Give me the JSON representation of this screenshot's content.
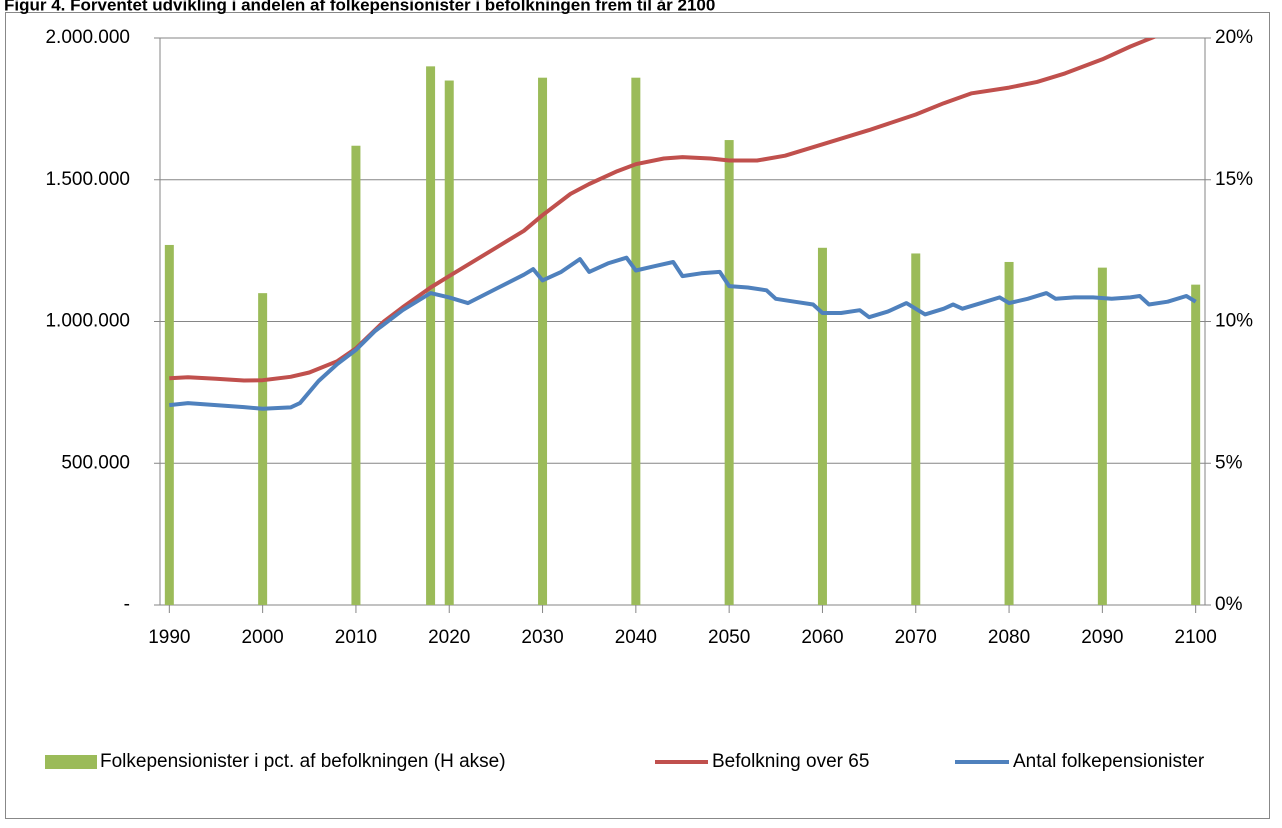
{
  "chart_data": {
    "type": "combo",
    "title": "Figur 4. Forventet udvikling i andelen af folkepensionister i befolkningen frem til år 2100",
    "xlim": [
      1989,
      2101
    ],
    "xticks": [
      1990,
      2000,
      2010,
      2020,
      2030,
      2040,
      2050,
      2060,
      2070,
      2080,
      2090,
      2100
    ],
    "ylim": [
      0,
      2000000
    ],
    "yticks": [
      {
        "value": 0,
        "label": "-"
      },
      {
        "value": 500000,
        "label": "500.000"
      },
      {
        "value": 1000000,
        "label": "1.000.000"
      },
      {
        "value": 1500000,
        "label": "1.500.000"
      },
      {
        "value": 2000000,
        "label": "2.000.000"
      }
    ],
    "y2lim": [
      0,
      20
    ],
    "y2ticks": [
      {
        "value": 0,
        "label": "0%"
      },
      {
        "value": 5,
        "label": "5%"
      },
      {
        "value": 10,
        "label": "10%"
      },
      {
        "value": 15,
        "label": "15%"
      },
      {
        "value": 20,
        "label": "20%"
      }
    ],
    "grid": true,
    "legend": "bottom",
    "series": [
      {
        "name": "Folkepensionister i pct. af befolkningen (H akse)",
        "type": "bar",
        "axis": "y2",
        "color": "#9bbb59",
        "x": [
          1990,
          2000,
          2010,
          2018,
          2020,
          2030,
          2040,
          2050,
          2060,
          2070,
          2080,
          2090,
          2100
        ],
        "values": [
          12.7,
          11.0,
          16.2,
          19.0,
          18.5,
          18.6,
          18.6,
          16.4,
          12.6,
          12.4,
          12.1,
          11.9,
          11.3
        ]
      },
      {
        "name": "Befolkning over 65",
        "type": "line",
        "color": "#c0504d",
        "x": [
          1990,
          1992,
          1995,
          1998,
          2000,
          2003,
          2005,
          2008,
          2010,
          2013,
          2015,
          2018,
          2020,
          2025,
          2028,
          2030,
          2033,
          2035,
          2038,
          2040,
          2043,
          2045,
          2048,
          2050,
          2053,
          2056,
          2060,
          2065,
          2070,
          2073,
          2076,
          2080,
          2083,
          2086,
          2090,
          2093,
          2096,
          2100
        ],
        "values": [
          800000,
          803000,
          798000,
          792000,
          793000,
          805000,
          820000,
          860000,
          905000,
          1000000,
          1050000,
          1120000,
          1160000,
          1260000,
          1320000,
          1375000,
          1450000,
          1485000,
          1530000,
          1555000,
          1575000,
          1580000,
          1575000,
          1568000,
          1568000,
          1585000,
          1625000,
          1675000,
          1730000,
          1770000,
          1805000,
          1825000,
          1845000,
          1875000,
          1925000,
          1970000,
          2010000,
          2050000
        ]
      },
      {
        "name": "Antal folkepensionister",
        "type": "line",
        "color": "#4f81bd",
        "x": [
          1990,
          1992,
          1995,
          1998,
          2000,
          2003,
          2004,
          2006,
          2008,
          2010,
          2012,
          2015,
          2018,
          2020,
          2022,
          2025,
          2028,
          2029,
          2030,
          2032,
          2034,
          2035,
          2037,
          2039,
          2040,
          2042,
          2044,
          2045,
          2047,
          2049,
          2050,
          2052,
          2054,
          2055,
          2057,
          2059,
          2060,
          2062,
          2064,
          2065,
          2067,
          2069,
          2071,
          2073,
          2074,
          2075,
          2077,
          2079,
          2080,
          2082,
          2084,
          2085,
          2087,
          2089,
          2091,
          2093,
          2094,
          2095,
          2097,
          2099,
          2100
        ],
        "values": [
          705000,
          712000,
          705000,
          698000,
          692000,
          697000,
          712000,
          790000,
          850000,
          900000,
          965000,
          1040000,
          1100000,
          1085000,
          1065000,
          1115000,
          1165000,
          1185000,
          1145000,
          1175000,
          1220000,
          1175000,
          1205000,
          1225000,
          1180000,
          1195000,
          1210000,
          1160000,
          1170000,
          1175000,
          1125000,
          1120000,
          1110000,
          1080000,
          1070000,
          1060000,
          1030000,
          1030000,
          1040000,
          1015000,
          1035000,
          1065000,
          1025000,
          1045000,
          1060000,
          1045000,
          1065000,
          1085000,
          1065000,
          1080000,
          1100000,
          1080000,
          1085000,
          1085000,
          1080000,
          1085000,
          1090000,
          1060000,
          1070000,
          1090000,
          1070000
        ]
      }
    ]
  }
}
